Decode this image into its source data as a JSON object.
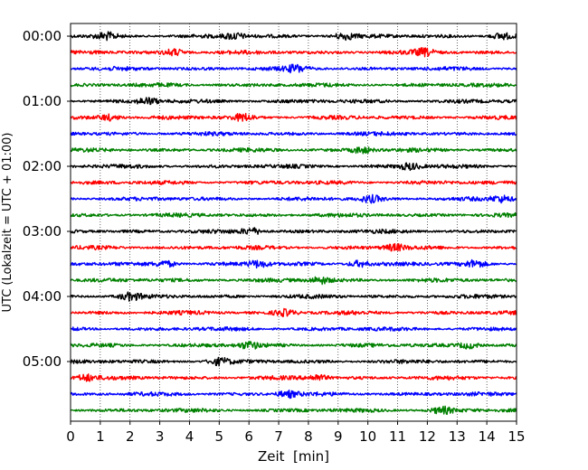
{
  "chart_data": {
    "type": "line",
    "xlabel": "Zeit  [min]",
    "ylabel": "UTC (Lokalzeit = UTC + 01:00)",
    "xlim": [
      0,
      15
    ],
    "x_ticks": [
      0,
      1,
      2,
      3,
      4,
      5,
      6,
      7,
      8,
      9,
      10,
      11,
      12,
      13,
      14,
      15
    ],
    "y_tick_labels": [
      "00:00",
      "01:00",
      "02:00",
      "03:00",
      "04:00",
      "05:00"
    ],
    "traces_per_hour": 4,
    "trace_count": 24,
    "trace_colors": [
      "#000000",
      "#ff0000",
      "#0000ff",
      "#008000"
    ],
    "vertical_grid": "dotted",
    "series": [
      {
        "name": "",
        "start": "00:00",
        "color": "#000000",
        "events_min": [
          1.2,
          5.5,
          9.2,
          14.5
        ]
      },
      {
        "name": "",
        "start": "00:15",
        "color": "#ff0000",
        "events_min": [
          3.5,
          11.9
        ]
      },
      {
        "name": "",
        "start": "00:30",
        "color": "#0000ff",
        "events_min": [
          7.6
        ]
      },
      {
        "name": "",
        "start": "00:45",
        "color": "#008000",
        "events_min": []
      },
      {
        "name": "",
        "start": "01:00",
        "color": "#000000",
        "events_min": [
          2.6
        ]
      },
      {
        "name": "",
        "start": "01:15",
        "color": "#ff0000",
        "events_min": [
          1.3,
          5.8
        ]
      },
      {
        "name": "",
        "start": "01:30",
        "color": "#0000ff",
        "events_min": []
      },
      {
        "name": "",
        "start": "01:45",
        "color": "#008000",
        "events_min": [
          9.8
        ]
      },
      {
        "name": "",
        "start": "02:00",
        "color": "#000000",
        "events_min": [
          11.4
        ]
      },
      {
        "name": "",
        "start": "02:15",
        "color": "#ff0000",
        "events_min": []
      },
      {
        "name": "",
        "start": "02:30",
        "color": "#0000ff",
        "events_min": [
          10.1,
          14.5
        ]
      },
      {
        "name": "",
        "start": "02:45",
        "color": "#008000",
        "events_min": []
      },
      {
        "name": "",
        "start": "03:00",
        "color": "#000000",
        "events_min": [
          6.1
        ]
      },
      {
        "name": "",
        "start": "03:15",
        "color": "#ff0000",
        "events_min": [
          10.9
        ]
      },
      {
        "name": "",
        "start": "03:30",
        "color": "#0000ff",
        "events_min": [
          3.2,
          6.3,
          9.7,
          13.6
        ]
      },
      {
        "name": "",
        "start": "03:45",
        "color": "#008000",
        "events_min": [
          8.4
        ]
      },
      {
        "name": "",
        "start": "04:00",
        "color": "#000000",
        "events_min": [
          2.0
        ]
      },
      {
        "name": "",
        "start": "04:15",
        "color": "#ff0000",
        "events_min": [
          7.2
        ]
      },
      {
        "name": "",
        "start": "04:30",
        "color": "#0000ff",
        "events_min": []
      },
      {
        "name": "",
        "start": "04:45",
        "color": "#008000",
        "events_min": [
          6.0,
          13.4
        ]
      },
      {
        "name": "",
        "start": "05:00",
        "color": "#000000",
        "events_min": [
          5.0
        ]
      },
      {
        "name": "",
        "start": "05:15",
        "color": "#ff0000",
        "events_min": [
          0.5,
          8.3
        ]
      },
      {
        "name": "",
        "start": "05:30",
        "color": "#0000ff",
        "events_min": [
          7.3
        ]
      },
      {
        "name": "",
        "start": "05:45",
        "color": "#008000",
        "events_min": [
          12.5
        ]
      }
    ]
  }
}
